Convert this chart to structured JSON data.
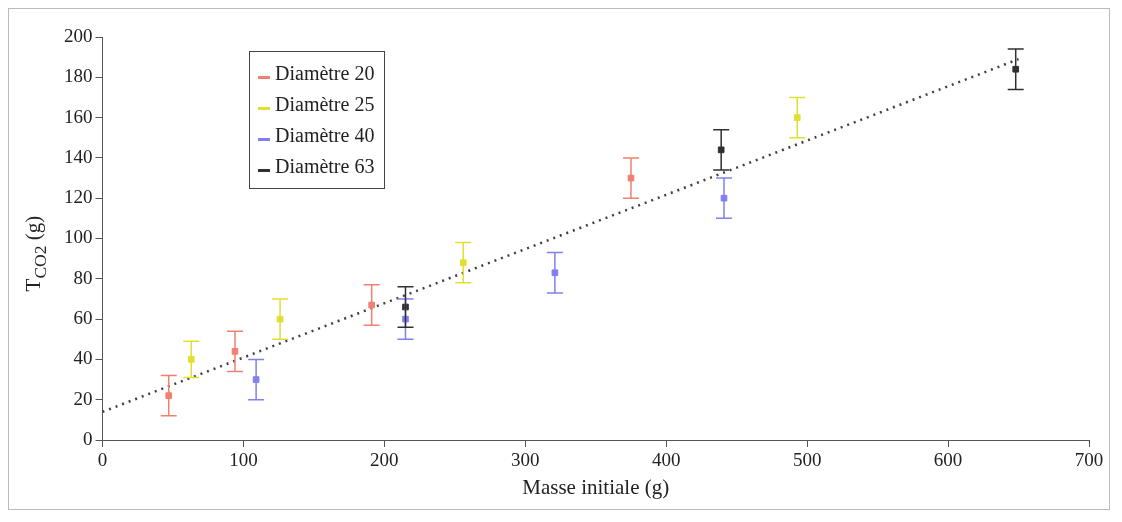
{
  "chart_data": {
    "type": "scatter",
    "xlabel": "Masse initiale (g)",
    "ylabel": "T$_{CO2}$ (g)",
    "xlim": [
      0,
      700
    ],
    "xticks": [
      0,
      100,
      200,
      300,
      400,
      500,
      600,
      700
    ],
    "ylim": [
      0,
      200
    ],
    "yticks": [
      0,
      20,
      40,
      60,
      80,
      100,
      120,
      140,
      160,
      180,
      200
    ],
    "grid": false,
    "legend": "top left",
    "series": [
      {
        "name": "Diamètre 20",
        "color": "#f08070",
        "x": [
          47,
          94,
          191,
          375
        ],
        "values": [
          22,
          44,
          67,
          130
        ],
        "marker": "square",
        "errors": [
          10,
          10,
          10,
          10
        ]
      },
      {
        "name": "Diamètre 25",
        "color": "#e0e030",
        "x": [
          63,
          126,
          256,
          493
        ],
        "values": [
          40,
          60,
          88,
          160
        ],
        "marker": "square",
        "errors": [
          9,
          10,
          10,
          10
        ]
      },
      {
        "name": "Diamètre 40",
        "color": "#8080f0",
        "x": [
          109,
          215,
          321,
          441
        ],
        "values": [
          30,
          60,
          83,
          120
        ],
        "marker": "square",
        "errors": [
          10,
          10,
          10,
          10
        ]
      },
      {
        "name": "Diamètre 63",
        "color": "#303030",
        "x": [
          215,
          439,
          648
        ],
        "values": [
          66,
          144,
          184
        ],
        "marker": "square",
        "errors": [
          10,
          10,
          10
        ]
      },
      {
        "type": "line",
        "color": "#404040",
        "line_style": "dotted",
        "x": [
          0,
          650
        ],
        "values": [
          14,
          189
        ]
      }
    ]
  }
}
